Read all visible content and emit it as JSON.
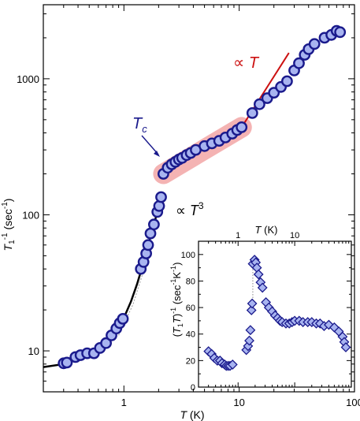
{
  "chart_data": [
    {
      "type": "scatter",
      "xlabel": "T (K)",
      "ylabel": "T₁⁻¹ (sec⁻¹)",
      "x_scale": "log",
      "y_scale": "log",
      "xlim": [
        0.2,
        100
      ],
      "ylim": [
        5,
        3500
      ],
      "x_ticks": [
        1,
        10,
        100
      ],
      "y_ticks": [
        10,
        100,
        1000
      ],
      "colors": {
        "marker_fill": "#a8b4f0",
        "marker_edge": "#1a1a8c",
        "fit_line": "#000000",
        "proportional_line": "#cc1111",
        "highlight_band": "#f3a6a6",
        "tc_arrow": "#1a1a8c"
      },
      "series": [
        {
          "values": [
            [
              0.3,
              8.1
            ],
            [
              0.32,
              8.2
            ],
            [
              0.38,
              9.0
            ],
            [
              0.42,
              9.3
            ],
            [
              0.48,
              9.6
            ],
            [
              0.55,
              9.6
            ],
            [
              0.62,
              10.5
            ],
            [
              0.7,
              11.4
            ],
            [
              0.78,
              13.0
            ],
            [
              0.86,
              14.6
            ],
            [
              0.92,
              16.0
            ],
            [
              0.98,
              17.2
            ],
            [
              1.4,
              40
            ],
            [
              1.48,
              45
            ],
            [
              1.56,
              52
            ],
            [
              1.62,
              60
            ],
            [
              1.7,
              73
            ],
            [
              1.82,
              85
            ],
            [
              1.95,
              105
            ],
            [
              2.02,
              116
            ],
            [
              2.1,
              135
            ],
            [
              2.2,
              200
            ],
            [
              2.4,
              222
            ],
            [
              2.6,
              235
            ],
            [
              2.8,
              245
            ],
            [
              3.0,
              255
            ],
            [
              3.2,
              262
            ],
            [
              3.5,
              275
            ],
            [
              3.8,
              285
            ],
            [
              4.2,
              300
            ],
            [
              5.0,
              320
            ],
            [
              5.8,
              335
            ],
            [
              6.7,
              350
            ],
            [
              7.6,
              370
            ],
            [
              8.7,
              395
            ],
            [
              9.6,
              420
            ],
            [
              10.5,
              440
            ],
            [
              13.0,
              560
            ],
            [
              15.0,
              650
            ],
            [
              17.5,
              720
            ],
            [
              20.0,
              790
            ],
            [
              23.0,
              870
            ],
            [
              26.0,
              960
            ],
            [
              30.0,
              1150
            ],
            [
              33.0,
              1300
            ],
            [
              37.0,
              1500
            ],
            [
              40.0,
              1650
            ],
            [
              45.0,
              1800
            ],
            [
              55.0,
              2000
            ],
            [
              63.0,
              2100
            ],
            [
              70.0,
              2250
            ],
            [
              75.0,
              2200
            ]
          ]
        }
      ],
      "annotations": [
        {
          "text": "T",
          "subscript": "c",
          "color": "#1a1a8c"
        },
        {
          "text": "∝ T",
          "color": "#cc1111"
        },
        {
          "text": "∝ T",
          "superscript": "3",
          "color": "#000000"
        }
      ]
    },
    {
      "type": "scatter",
      "marker": "diamond",
      "xlabel": "T (K)",
      "ylabel": "(T₁T)⁻¹ (sec⁻¹K⁻¹)",
      "x_scale": "log",
      "y_scale": "linear",
      "xlim": [
        0.2,
        100
      ],
      "ylim": [
        0,
        110
      ],
      "x_ticks": [
        1,
        10
      ],
      "y_ticks": [
        0,
        20,
        40,
        60,
        80,
        100
      ],
      "series": [
        {
          "values": [
            [
              0.3,
              27
            ],
            [
              0.34,
              25
            ],
            [
              0.38,
              22
            ],
            [
              0.43,
              20
            ],
            [
              0.48,
              20
            ],
            [
              0.52,
              18
            ],
            [
              0.58,
              17
            ],
            [
              0.62,
              16
            ],
            [
              0.67,
              16
            ],
            [
              0.72,
              16
            ],
            [
              0.8,
              17
            ],
            [
              1.4,
              28
            ],
            [
              1.5,
              31
            ],
            [
              1.58,
              35
            ],
            [
              1.65,
              43
            ],
            [
              1.72,
              58
            ],
            [
              1.77,
              63
            ],
            [
              1.82,
              93
            ],
            [
              1.95,
              96
            ],
            [
              2.05,
              94
            ],
            [
              2.15,
              90
            ],
            [
              2.3,
              85
            ],
            [
              2.5,
              79
            ],
            [
              2.7,
              75
            ],
            [
              3.1,
              64
            ],
            [
              3.5,
              60
            ],
            [
              4.0,
              57
            ],
            [
              4.5,
              54
            ],
            [
              5.0,
              52
            ],
            [
              5.5,
              50
            ],
            [
              6.0,
              49
            ],
            [
              7.0,
              48
            ],
            [
              8.0,
              48
            ],
            [
              9.0,
              49
            ],
            [
              10.0,
              50
            ],
            [
              12.0,
              50
            ],
            [
              14.0,
              49
            ],
            [
              17.0,
              49
            ],
            [
              20.0,
              49
            ],
            [
              24.0,
              48
            ],
            [
              28.0,
              48
            ],
            [
              33.0,
              46
            ],
            [
              40.0,
              47
            ],
            [
              50.0,
              45
            ],
            [
              60.0,
              42
            ],
            [
              70.0,
              38
            ],
            [
              75.0,
              34
            ],
            [
              80.0,
              30
            ]
          ]
        }
      ]
    }
  ],
  "labels": {
    "main_xlabel": "T (K)",
    "main_ylabel": "T1-1 (sec-1)",
    "inset_xlabel": "T (K)",
    "inset_ylabel": "(T1T)-1 (sec-1K-1)",
    "tc": "Tc",
    "prop_t": "∝ T",
    "prop_t3": "∝ T3"
  }
}
